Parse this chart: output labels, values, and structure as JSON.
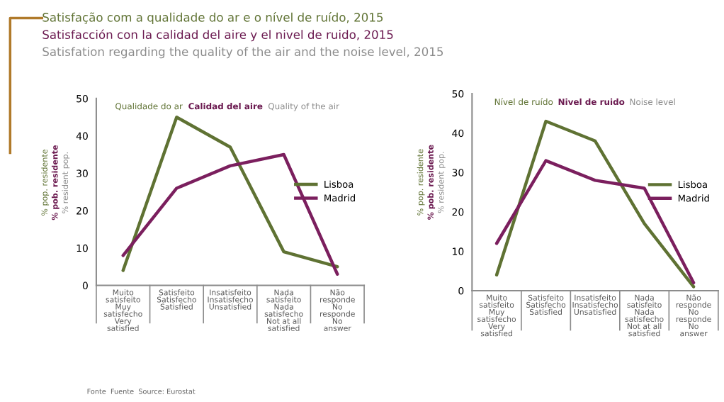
{
  "chart_data": [
    {
      "type": "line",
      "title": "Satisfação com a qualidade do ar e o nível de ruído, 2015",
      "subtitle": "Satisfacción con la calidad del aire y el nivel de ruido, 2015",
      "annotations": [
        "Satisfation regarding the quality of the air and the noise level, 2015",
        "Qualidade do ar",
        "Calidad del aire",
        "Quality of the air",
        "Fonte  Fuente  Source: Eurostat"
      ],
      "ylabel": "% pop. residente\n% pob. residente\n% resident pop.",
      "categories": [
        "Muito\nsatisfeito\nMuy\nsatisfecho\nVery\nsatisfied",
        "Satisfeito\nSatisfecho\nSatisfied",
        "Insatisfeito\nInsatisfecho\nUnsatisfied",
        "Nada\nsatisfeito\nNada\nsatisfecho\nNot at all\nsatisfied",
        "Não\nresponde\nNo\nresponde\nNo\nanswer"
      ],
      "series": [
        {
          "name": "Lisboa",
          "color": "#5f7233",
          "values": [
            4,
            45,
            37,
            9,
            5
          ]
        },
        {
          "name": "Madrid",
          "color": "#7b1f5e",
          "values": [
            8,
            26,
            32,
            35,
            3
          ]
        }
      ],
      "ylim": [
        0,
        50
      ],
      "yticks": [
        0,
        10,
        20,
        30,
        40,
        50
      ],
      "legend": "right",
      "grid": false
    },
    {
      "type": "line",
      "annotations": [
        "Nível de ruído",
        "Nivel de ruido",
        "Noise level"
      ],
      "ylabel": "% pop. residente\n% pob. residente\n% resident pop.",
      "categories": [
        "Muito\nsatisfeito\nMuy\nsatisfecho\nVery\nsatisfied",
        "Satisfeito\nSatisfecho\nSatisfied",
        "Insatisfeito\nInsatisfecho\nUnsatisfied",
        "Nada\nsatisfeito\nNada\nsatisfecho\nNot at all\nsatisfied",
        "Não\nresponde\nNo\nresponde\nNo\nanswer"
      ],
      "series": [
        {
          "name": "Lisboa",
          "color": "#5f7233",
          "values": [
            4,
            43,
            38,
            17,
            1
          ]
        },
        {
          "name": "Madrid",
          "color": "#7b1f5e",
          "values": [
            12,
            33,
            28,
            26,
            2
          ]
        }
      ],
      "ylim": [
        0,
        50
      ],
      "yticks": [
        0,
        10,
        20,
        30,
        40,
        50
      ],
      "legend": "right",
      "grid": false
    }
  ]
}
